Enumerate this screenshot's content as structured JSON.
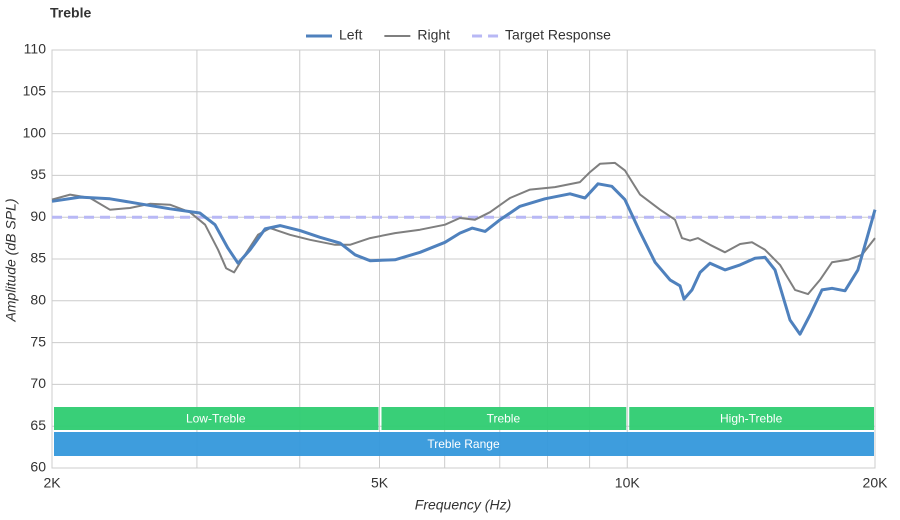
{
  "chart_data": {
    "type": "line",
    "title": "Treble",
    "x_label": "Frequency (Hz)",
    "y_label": "Amplitude (dB SPL)",
    "xscale": "log",
    "xlim": [
      2000,
      20000
    ],
    "xticks": [
      {
        "value": 2000,
        "label": "2K"
      },
      {
        "value": 5000,
        "label": "5K"
      },
      {
        "value": 10000,
        "label": "10K"
      },
      {
        "value": 20000,
        "label": "20K"
      }
    ],
    "xgrid": [
      3000,
      4000,
      6000,
      7000,
      8000,
      9000
    ],
    "ylim": [
      60,
      110
    ],
    "yticks": [
      60,
      65,
      70,
      75,
      80,
      85,
      90,
      95,
      100,
      105,
      110
    ],
    "grid": true,
    "legend": "top",
    "series": [
      {
        "name": "Left",
        "color": "#4f81bd",
        "width": 3,
        "x": [
          2000,
          2163,
          2352,
          2557,
          2782,
          3024,
          3156,
          3272,
          3365,
          3481,
          3630,
          3786,
          4003,
          4233,
          4477,
          4670,
          4870,
          5222,
          5601,
          6005,
          6262,
          6478,
          6718,
          7006,
          7408,
          7943,
          8519,
          8884,
          9215,
          9578,
          9934,
          10366,
          10809,
          11271,
          11591,
          11720,
          11985,
          12259,
          12605,
          13146,
          13712,
          14298,
          14703,
          15120,
          15768,
          16214,
          16673,
          17243,
          17733,
          18389,
          19067,
          19609,
          20000
        ],
        "values": [
          91.9,
          92.4,
          92.2,
          91.6,
          91.0,
          90.5,
          89.1,
          86.3,
          84.5,
          86.1,
          88.6,
          89.0,
          88.4,
          87.6,
          86.9,
          85.5,
          84.8,
          84.9,
          85.8,
          87.0,
          88.1,
          88.7,
          88.3,
          89.7,
          91.3,
          92.2,
          92.8,
          92.3,
          94.0,
          93.7,
          92.1,
          88.2,
          84.6,
          82.5,
          81.8,
          80.2,
          81.3,
          83.4,
          84.5,
          83.7,
          84.3,
          85.1,
          85.2,
          83.7,
          77.7,
          76.0,
          78.3,
          81.3,
          81.5,
          81.2,
          83.7,
          87.9,
          90.9
        ]
      },
      {
        "name": "Right",
        "color": "#7f7f7f",
        "width": 2,
        "x": [
          2000,
          2104,
          2225,
          2352,
          2487,
          2630,
          2782,
          2942,
          3069,
          3183,
          3255,
          3329,
          3432,
          3559,
          3681,
          3892,
          4116,
          4415,
          4604,
          4870,
          5222,
          5601,
          6005,
          6262,
          6532,
          6812,
          7203,
          7618,
          8168,
          8761,
          9009,
          9268,
          9664,
          9934,
          10366,
          10962,
          11429,
          11656,
          11919,
          12190,
          12605,
          13146,
          13712,
          14178,
          14703,
          15330,
          15990,
          16583,
          17148,
          17733,
          18542,
          19283,
          20000
        ],
        "values": [
          92.1,
          92.7,
          92.3,
          90.9,
          91.1,
          91.6,
          91.5,
          90.6,
          89.1,
          86.1,
          83.9,
          83.4,
          85.5,
          87.9,
          88.7,
          87.9,
          87.3,
          86.7,
          86.7,
          87.5,
          88.1,
          88.5,
          89.1,
          89.9,
          89.7,
          90.6,
          92.3,
          93.3,
          93.6,
          94.2,
          95.4,
          96.4,
          96.5,
          95.6,
          92.7,
          90.9,
          89.7,
          87.5,
          87.2,
          87.5,
          86.7,
          85.8,
          86.8,
          87.0,
          86.1,
          84.3,
          81.3,
          80.8,
          82.5,
          84.6,
          84.9,
          85.5,
          87.5
        ]
      },
      {
        "name": "Target Response",
        "color": "#b8b8f5",
        "width": 3,
        "dashed": true,
        "x": [
          2000,
          20000
        ],
        "values": [
          90,
          90
        ]
      }
    ],
    "regions": [
      {
        "label": "Low-Treble",
        "start": 2000,
        "end": 5000,
        "color": "#2ecc71"
      },
      {
        "label": "Treble",
        "start": 5000,
        "end": 10000,
        "color": "#2ecc71"
      },
      {
        "label": "High-Treble",
        "start": 10000,
        "end": 20000,
        "color": "#2ecc71"
      }
    ],
    "range": {
      "label": "Treble Range",
      "start": 2000,
      "end": 20000,
      "color": "#3498db"
    }
  }
}
